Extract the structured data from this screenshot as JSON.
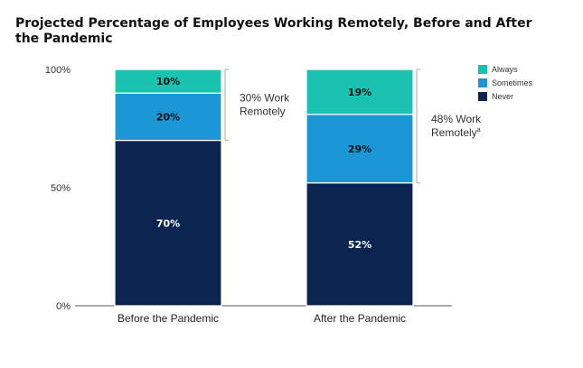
{
  "chart_data": {
    "type": "bar",
    "stacked": true,
    "title": "Projected Percentage of Employees Working Remotely, Before and After the Pandemic",
    "categories": [
      "Before the Pandemic",
      "After the Pandemic"
    ],
    "series": [
      {
        "name": "Never",
        "values": [
          70,
          52
        ],
        "color": "#0b2450"
      },
      {
        "name": "Sometimes",
        "values": [
          20,
          29
        ],
        "color": "#1d96d6"
      },
      {
        "name": "Always",
        "values": [
          10,
          19
        ],
        "color": "#19c3b0"
      }
    ],
    "data_labels": [
      [
        "70%",
        "52%"
      ],
      [
        "20%",
        "29%"
      ],
      [
        "10%",
        "19%"
      ]
    ],
    "y_ticks": [
      {
        "value": 0,
        "label": "0%"
      },
      {
        "value": 50,
        "label": "50%"
      },
      {
        "value": 100,
        "label": "100%"
      }
    ],
    "ylim": [
      0,
      100
    ],
    "xlabel": "",
    "ylabel": "",
    "grid": false,
    "legend": {
      "placement": "top-right",
      "order": [
        "Always",
        "Sometimes",
        "Never"
      ]
    },
    "annotations": [
      {
        "category": "Before the Pandemic",
        "range": [
          70,
          100
        ],
        "line1": "30% Work",
        "line2": "Remotely",
        "superscript": ""
      },
      {
        "category": "After the Pandemic",
        "range": [
          52,
          100
        ],
        "line1": "48% Work",
        "line2": "Remotely",
        "superscript": "a"
      }
    ]
  }
}
